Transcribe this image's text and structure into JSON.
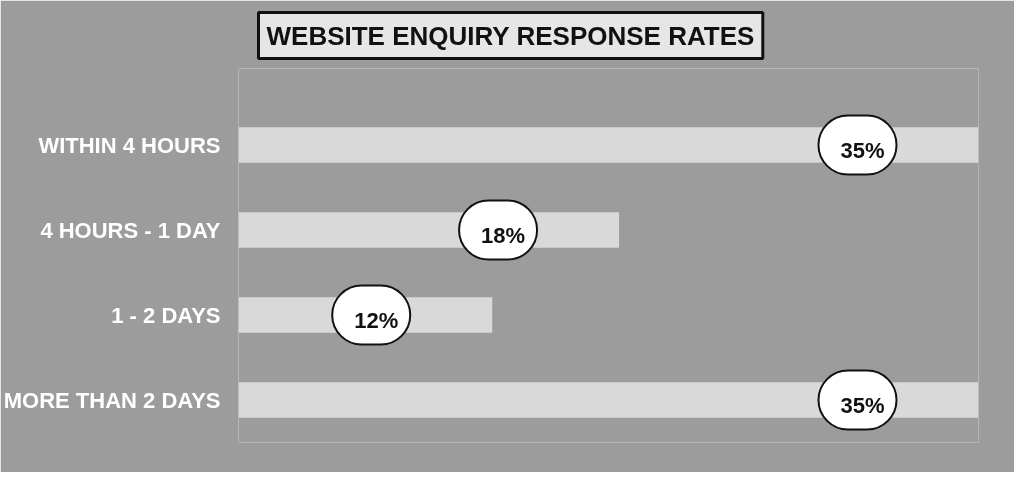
{
  "chart_data": {
    "type": "bar",
    "orientation": "horizontal",
    "title": "WEBSITE ENQUIRY RESPONSE RATES",
    "categories": [
      "WITHIN 4 HOURS",
      "4 HOURS - 1 DAY",
      "1 - 2 DAYS",
      "MORE THAN 2 DAYS"
    ],
    "values": [
      35,
      18,
      12,
      35
    ],
    "value_labels": [
      "35%",
      "18%",
      "12%",
      "35%"
    ],
    "color": "#d9d9d9",
    "grid": false
  }
}
